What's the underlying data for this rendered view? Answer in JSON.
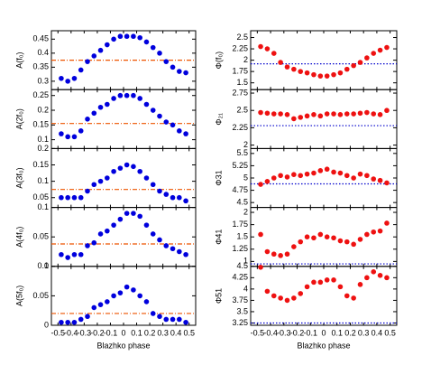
{
  "chart_data": [
    {
      "type": "scatter",
      "ylabel": "A(f₀)",
      "x": [
        -0.475,
        -0.425,
        -0.375,
        -0.325,
        -0.275,
        -0.225,
        -0.175,
        -0.125,
        -0.075,
        -0.025,
        0.025,
        0.075,
        0.125,
        0.175,
        0.225,
        0.275,
        0.325,
        0.375,
        0.425,
        0.475
      ],
      "values": [
        0.31,
        0.3,
        0.31,
        0.34,
        0.37,
        0.39,
        0.41,
        0.43,
        0.45,
        0.46,
        0.46,
        0.46,
        0.455,
        0.44,
        0.42,
        0.4,
        0.37,
        0.35,
        0.335,
        0.33
      ],
      "color": "#0000dd",
      "reference_line": {
        "value": 0.375,
        "color": "#ee5500",
        "style": "dashdot"
      },
      "xlim": [
        -0.55,
        0.55
      ],
      "xticks": [
        -0.5,
        -0.4,
        -0.3,
        -0.2,
        -0.1,
        0,
        0.1,
        0.2,
        0.3,
        0.4,
        0.5
      ],
      "ylim": [
        0.27,
        0.48
      ],
      "yticks": [
        0.3,
        0.35,
        0.4,
        0.45
      ]
    },
    {
      "type": "scatter",
      "ylabel": "A(2f₀)",
      "x": [
        -0.475,
        -0.425,
        -0.375,
        -0.325,
        -0.275,
        -0.225,
        -0.175,
        -0.125,
        -0.075,
        -0.025,
        0.025,
        0.075,
        0.125,
        0.175,
        0.225,
        0.275,
        0.325,
        0.375,
        0.425,
        0.475
      ],
      "values": [
        0.12,
        0.11,
        0.11,
        0.13,
        0.17,
        0.19,
        0.21,
        0.22,
        0.24,
        0.25,
        0.25,
        0.25,
        0.24,
        0.22,
        0.2,
        0.18,
        0.16,
        0.15,
        0.13,
        0.12
      ],
      "color": "#0000dd",
      "reference_line": {
        "value": 0.155,
        "color": "#ee5500",
        "style": "dashdot"
      },
      "xlim": [
        -0.55,
        0.55
      ],
      "xticks": [
        -0.5,
        -0.4,
        -0.3,
        -0.2,
        -0.1,
        0,
        0.1,
        0.2,
        0.3,
        0.4,
        0.5
      ],
      "ylim": [
        0.07,
        0.27
      ],
      "yticks": [
        0.1,
        0.15,
        0.2,
        0.25
      ]
    },
    {
      "type": "scatter",
      "ylabel": "A(3f₀)",
      "x": [
        -0.475,
        -0.425,
        -0.375,
        -0.325,
        -0.275,
        -0.225,
        -0.175,
        -0.125,
        -0.075,
        -0.025,
        0.025,
        0.075,
        0.125,
        0.175,
        0.225,
        0.275,
        0.325,
        0.375,
        0.425,
        0.475
      ],
      "values": [
        0.05,
        0.05,
        0.05,
        0.05,
        0.07,
        0.09,
        0.1,
        0.11,
        0.13,
        0.14,
        0.15,
        0.145,
        0.13,
        0.11,
        0.09,
        0.07,
        0.06,
        0.05,
        0.05,
        0.04
      ],
      "color": "#0000dd",
      "reference_line": {
        "value": 0.075,
        "color": "#ee5500",
        "style": "dashdot"
      },
      "xlim": [
        -0.55,
        0.55
      ],
      "xticks": [
        -0.5,
        -0.4,
        -0.3,
        -0.2,
        -0.1,
        0,
        0.1,
        0.2,
        0.3,
        0.4,
        0.5
      ],
      "ylim": [
        0.02,
        0.2
      ],
      "yticks": [
        0.05,
        0.1,
        0.15,
        0.2
      ]
    },
    {
      "type": "scatter",
      "ylabel": "A(4f₀)",
      "x": [
        -0.475,
        -0.425,
        -0.375,
        -0.325,
        -0.275,
        -0.225,
        -0.175,
        -0.125,
        -0.075,
        -0.025,
        0.025,
        0.075,
        0.125,
        0.175,
        0.225,
        0.275,
        0.325,
        0.375,
        0.425,
        0.475
      ],
      "values": [
        0.02,
        0.015,
        0.02,
        0.02,
        0.035,
        0.04,
        0.055,
        0.06,
        0.07,
        0.08,
        0.09,
        0.09,
        0.085,
        0.07,
        0.055,
        0.045,
        0.035,
        0.03,
        0.025,
        0.02
      ],
      "color": "#0000dd",
      "reference_line": {
        "value": 0.038,
        "color": "#ee5500",
        "style": "dashdot"
      },
      "xlim": [
        -0.55,
        0.55
      ],
      "xticks": [
        -0.5,
        -0.4,
        -0.3,
        -0.2,
        -0.1,
        0,
        0.1,
        0.2,
        0.3,
        0.4,
        0.5
      ],
      "ylim": [
        0,
        0.1
      ],
      "yticks": [
        0,
        0.05,
        0.1
      ]
    },
    {
      "type": "scatter",
      "ylabel": "A(5f₀)",
      "xlabel": "Blazhko phase",
      "x": [
        -0.475,
        -0.425,
        -0.375,
        -0.325,
        -0.275,
        -0.225,
        -0.175,
        -0.125,
        -0.075,
        -0.025,
        0.025,
        0.075,
        0.125,
        0.175,
        0.225,
        0.275,
        0.325,
        0.375,
        0.425,
        0.475
      ],
      "values": [
        0.005,
        0.005,
        0.005,
        0.01,
        0.015,
        0.03,
        0.035,
        0.04,
        0.05,
        0.055,
        0.065,
        0.06,
        0.05,
        0.04,
        0.02,
        0.015,
        0.01,
        0.01,
        0.01,
        0.005
      ],
      "color": "#0000dd",
      "reference_line": {
        "value": 0.02,
        "color": "#ee5500",
        "style": "dashdot"
      },
      "xlim": [
        -0.55,
        0.55
      ],
      "xticks": [
        -0.5,
        -0.4,
        -0.3,
        -0.2,
        -0.1,
        0,
        0.1,
        0.2,
        0.3,
        0.4,
        0.5
      ],
      "ylim": [
        0,
        0.1
      ],
      "yticks": [
        0,
        0.05,
        0.1
      ]
    },
    {
      "type": "scatter",
      "ylabel": "Φ(f₀)",
      "x": [
        -0.475,
        -0.425,
        -0.375,
        -0.325,
        -0.275,
        -0.225,
        -0.175,
        -0.125,
        -0.075,
        -0.025,
        0.025,
        0.075,
        0.125,
        0.175,
        0.225,
        0.275,
        0.325,
        0.375,
        0.425,
        0.475
      ],
      "values": [
        2.3,
        2.25,
        2.15,
        1.95,
        1.85,
        1.8,
        1.75,
        1.72,
        1.68,
        1.65,
        1.65,
        1.68,
        1.72,
        1.8,
        1.88,
        1.95,
        2.05,
        2.15,
        2.22,
        2.28
      ],
      "color": "#ee1111",
      "reference_line": {
        "value": 1.92,
        "color": "#0000cc",
        "style": "dotted"
      },
      "xlim": [
        -0.55,
        0.55
      ],
      "xticks": [
        -0.5,
        -0.4,
        -0.3,
        -0.2,
        -0.1,
        0,
        0.1,
        0.2,
        0.3,
        0.4,
        0.5
      ],
      "ylim": [
        1.35,
        2.65
      ],
      "yticks": [
        1.5,
        1.75,
        2,
        2.25,
        2.5
      ]
    },
    {
      "type": "scatter",
      "ylabel": "Φ₂₁",
      "x": [
        -0.475,
        -0.425,
        -0.375,
        -0.325,
        -0.275,
        -0.225,
        -0.175,
        -0.125,
        -0.075,
        -0.025,
        0.025,
        0.075,
        0.125,
        0.175,
        0.225,
        0.275,
        0.325,
        0.375,
        0.425,
        0.475
      ],
      "values": [
        2.47,
        2.46,
        2.45,
        2.45,
        2.44,
        2.38,
        2.4,
        2.42,
        2.44,
        2.42,
        2.45,
        2.45,
        2.44,
        2.45,
        2.45,
        2.46,
        2.47,
        2.45,
        2.44,
        2.5
      ],
      "color": "#ee1111",
      "reference_line": {
        "value": 2.28,
        "color": "#0000cc",
        "style": "dotted"
      },
      "xlim": [
        -0.55,
        0.55
      ],
      "xticks": [
        -0.5,
        -0.4,
        -0.3,
        -0.2,
        -0.1,
        0,
        0.1,
        0.2,
        0.3,
        0.4,
        0.5
      ],
      "ylim": [
        1.95,
        2.8
      ],
      "yticks": [
        2,
        2.25,
        2.5,
        2.75
      ]
    },
    {
      "type": "scatter",
      "ylabel": "Φ31",
      "x": [
        -0.475,
        -0.425,
        -0.375,
        -0.325,
        -0.275,
        -0.225,
        -0.175,
        -0.125,
        -0.075,
        -0.025,
        0.025,
        0.075,
        0.125,
        0.175,
        0.225,
        0.275,
        0.325,
        0.375,
        0.425,
        0.475
      ],
      "values": [
        4.87,
        4.93,
        5.0,
        5.05,
        5.02,
        5.07,
        5.05,
        5.08,
        5.1,
        5.15,
        5.18,
        5.12,
        5.1,
        5.05,
        5.0,
        5.08,
        5.05,
        4.98,
        4.95,
        4.9
      ],
      "color": "#ee1111",
      "reference_line": {
        "value": 4.88,
        "color": "#0000cc",
        "style": "dotted"
      },
      "xlim": [
        -0.55,
        0.55
      ],
      "xticks": [
        -0.5,
        -0.4,
        -0.3,
        -0.2,
        -0.1,
        0,
        0.1,
        0.2,
        0.3,
        0.4,
        0.5
      ],
      "ylim": [
        4.4,
        5.6
      ],
      "yticks": [
        4.5,
        4.75,
        5,
        5.25,
        5.5
      ]
    },
    {
      "type": "scatter",
      "ylabel": "Φ41",
      "x": [
        -0.475,
        -0.425,
        -0.375,
        -0.325,
        -0.275,
        -0.225,
        -0.175,
        -0.125,
        -0.075,
        -0.025,
        0.025,
        0.075,
        0.125,
        0.175,
        0.225,
        0.275,
        0.325,
        0.375,
        0.425,
        0.475
      ],
      "values": [
        1.55,
        1.2,
        1.15,
        1.12,
        1.15,
        1.3,
        1.4,
        1.5,
        1.48,
        1.55,
        1.5,
        1.48,
        1.42,
        1.4,
        1.35,
        1.45,
        1.55,
        1.6,
        1.62,
        1.78
      ],
      "color": "#ee1111",
      "reference_line": {
        "value": 0.95,
        "color": "#0000cc",
        "style": "dotted"
      },
      "xlim": [
        -0.55,
        0.55
      ],
      "xticks": [
        -0.5,
        -0.4,
        -0.3,
        -0.2,
        -0.1,
        0,
        0.1,
        0.2,
        0.3,
        0.4,
        0.5
      ],
      "ylim": [
        0.9,
        2.1
      ],
      "yticks": [
        1,
        1.25,
        1.5,
        1.75,
        2
      ]
    },
    {
      "type": "scatter",
      "ylabel": "Φ51",
      "xlabel": "Blazhko phase",
      "x": [
        -0.475,
        -0.425,
        -0.375,
        -0.325,
        -0.275,
        -0.225,
        -0.175,
        -0.125,
        -0.075,
        -0.025,
        0.025,
        0.075,
        0.125,
        0.175,
        0.225,
        0.275,
        0.325,
        0.375,
        0.425,
        0.475
      ],
      "values": [
        4.48,
        3.95,
        3.85,
        3.8,
        3.75,
        3.8,
        3.9,
        4.05,
        4.15,
        4.15,
        4.2,
        4.2,
        4.05,
        3.85,
        3.8,
        4.1,
        4.25,
        4.38,
        4.3,
        4.25
      ],
      "color": "#ee1111",
      "reference_line": {
        "value": 3.25,
        "color": "#0000cc",
        "style": "dotted"
      },
      "xlim": [
        -0.55,
        0.55
      ],
      "xticks": [
        -0.5,
        -0.4,
        -0.3,
        -0.2,
        -0.1,
        0,
        0.1,
        0.2,
        0.3,
        0.4,
        0.5
      ],
      "ylim": [
        3.2,
        4.5
      ],
      "yticks": [
        3.25,
        3.5,
        3.75,
        4,
        4.25,
        4.5
      ]
    }
  ]
}
